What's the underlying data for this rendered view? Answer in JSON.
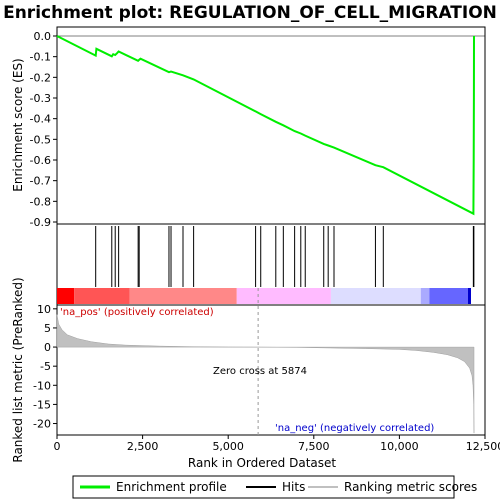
{
  "chart_data": {
    "type": "line",
    "title": "Enrichment plot: REGULATION_OF_CELL_MIGRATION",
    "top_panel": {
      "ylabel": "Enrichment score (ES)",
      "ylim": [
        -0.9,
        0.0
      ],
      "yticks": [
        "0.0",
        "-0.1",
        "-0.2",
        "-0.3",
        "-0.4",
        "-0.5",
        "-0.6",
        "-0.7",
        "-0.8",
        "-0.9"
      ],
      "ytick_values": [
        0.0,
        -0.1,
        -0.2,
        -0.3,
        -0.4,
        -0.5,
        -0.6,
        -0.7,
        -0.8,
        -0.9
      ],
      "series": [
        {
          "name": "Enrichment profile",
          "color": "#00ee00",
          "x": [
            0,
            1130,
            1150,
            1600,
            1640,
            1700,
            1760,
            1800,
            2370,
            2400,
            2440,
            3270,
            3330,
            3680,
            3990,
            5800,
            5950,
            6390,
            6610,
            6940,
            7120,
            7250,
            7790,
            7920,
            8090,
            9300,
            9530,
            12160,
            12170,
            12175,
            12180
          ],
          "y": [
            0.0,
            -0.095,
            -0.062,
            -0.098,
            -0.088,
            -0.092,
            -0.082,
            -0.075,
            -0.12,
            -0.115,
            -0.11,
            -0.175,
            -0.172,
            -0.19,
            -0.21,
            -0.365,
            -0.378,
            -0.415,
            -0.432,
            -0.46,
            -0.472,
            -0.482,
            -0.522,
            -0.53,
            -0.54,
            -0.625,
            -0.635,
            -0.86,
            -0.6,
            -0.3,
            0.0
          ]
        }
      ]
    },
    "hits_panel": {
      "series_name": "Hits",
      "positions": [
        1130,
        1600,
        1700,
        1800,
        2370,
        2400,
        3270,
        3330,
        3680,
        3990,
        5800,
        5950,
        6390,
        6610,
        6940,
        7120,
        7250,
        7790,
        7920,
        8090,
        9300,
        9530,
        12160,
        12175
      ]
    },
    "bottom_panel": {
      "ylabel": "Ranked list metric (PreRanked)",
      "xlabel": "Rank in Ordered Dataset",
      "ylim": [
        -23,
        11
      ],
      "yticks": [
        "10",
        "5",
        "0",
        "-5",
        "-10",
        "-15",
        "-20"
      ],
      "ytick_values": [
        10,
        5,
        0,
        -5,
        -10,
        -15,
        -20
      ],
      "xlim": [
        0,
        12500
      ],
      "xticks": [
        "0",
        "2,500",
        "5,000",
        "7,500",
        "10,000",
        "12,500"
      ],
      "xtick_values": [
        0,
        2500,
        5000,
        7500,
        10000,
        12500
      ],
      "series_name": "Ranking metric scores",
      "metric_x": [
        0,
        50,
        150,
        300,
        600,
        1000,
        1500,
        2000,
        3000,
        4000,
        5000,
        5874,
        7000,
        8000,
        9000,
        10000,
        10500,
        11000,
        11400,
        11700,
        11900,
        12050,
        12120,
        12150,
        12170,
        12180
      ],
      "metric_y": [
        8.5,
        6.0,
        4.5,
        3.2,
        2.2,
        1.4,
        0.8,
        0.5,
        0.25,
        0.1,
        0.02,
        0.0,
        -0.1,
        -0.25,
        -0.4,
        -0.6,
        -0.9,
        -1.4,
        -2.0,
        -2.8,
        -3.8,
        -5.5,
        -7.5,
        -10.0,
        -15.0,
        -22.5
      ],
      "zero_cross_label": "Zero cross at 5874",
      "zero_cross_x": 5874,
      "pos_label": "'na_pos' (positively correlated)",
      "neg_label": "'na_neg' (negatively correlated)"
    },
    "heat_bar_colors": [
      "#ff0000",
      "#ff5555",
      "#ff8888",
      "#ffbbff",
      "#ddddff",
      "#aaaaff",
      "#6666ff",
      "#0000cc"
    ],
    "legend": [
      {
        "label": "Enrichment profile",
        "color": "#00ee00"
      },
      {
        "label": "Hits",
        "color": "#000000"
      },
      {
        "label": "Ranking metric scores",
        "color": "#c0c0c0"
      }
    ]
  }
}
